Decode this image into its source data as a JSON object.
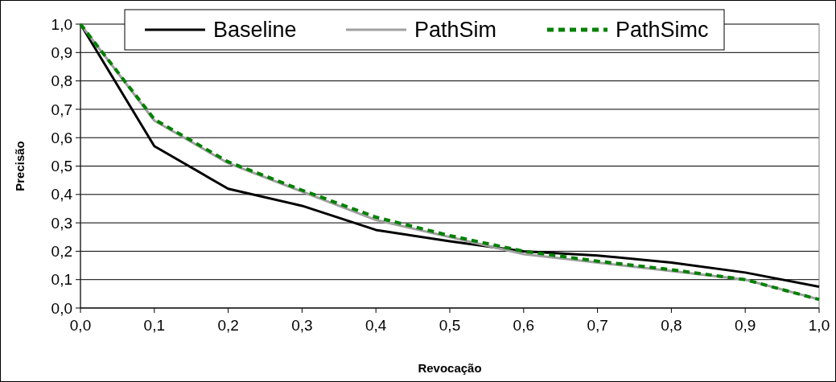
{
  "chart_data": {
    "type": "line",
    "xlabel": "Revocação",
    "ylabel": "Precisão",
    "x": [
      0,
      0.1,
      0.2,
      0.3,
      0.4,
      0.5,
      0.6,
      0.7,
      0.8,
      0.9,
      1.0
    ],
    "series": [
      {
        "name": "Baseline",
        "color": "#000000",
        "values": [
          1.0,
          0.57,
          0.42,
          0.36,
          0.275,
          0.235,
          0.2,
          0.185,
          0.16,
          0.125,
          0.075
        ]
      },
      {
        "name": "PathSim",
        "color": "#a0a0a0",
        "values": [
          1.0,
          0.66,
          0.51,
          0.41,
          0.31,
          0.25,
          0.19,
          0.16,
          0.13,
          0.1,
          0.03
        ]
      },
      {
        "name": "PathSimc",
        "color": "#008000",
        "line_style": "dashed",
        "values": [
          1.0,
          0.665,
          0.515,
          0.415,
          0.32,
          0.255,
          0.2,
          0.165,
          0.135,
          0.1,
          0.03
        ]
      }
    ],
    "xlim": [
      0,
      1
    ],
    "ylim": [
      0,
      1
    ],
    "xticks": [
      {
        "value": 0,
        "label": "0,0"
      },
      {
        "value": 0.1,
        "label": "0,1"
      },
      {
        "value": 0.2,
        "label": "0,2"
      },
      {
        "value": 0.3,
        "label": "0,3"
      },
      {
        "value": 0.4,
        "label": "0,4"
      },
      {
        "value": 0.5,
        "label": "0,5"
      },
      {
        "value": 0.6,
        "label": "0,6"
      },
      {
        "value": 0.7,
        "label": "0,7"
      },
      {
        "value": 0.8,
        "label": "0,8"
      },
      {
        "value": 0.9,
        "label": "0,9"
      },
      {
        "value": 1,
        "label": "1,0"
      }
    ],
    "yticks": [
      {
        "value": 0,
        "label": "0,0"
      },
      {
        "value": 0.1,
        "label": "0,1"
      },
      {
        "value": 0.2,
        "label": "0,2"
      },
      {
        "value": 0.3,
        "label": "0,3"
      },
      {
        "value": 0.4,
        "label": "0,4"
      },
      {
        "value": 0.5,
        "label": "0,5"
      },
      {
        "value": 0.6,
        "label": "0,6"
      },
      {
        "value": 0.7,
        "label": "0,7"
      },
      {
        "value": 0.8,
        "label": "0,8"
      },
      {
        "value": 0.9,
        "label": "0,9"
      },
      {
        "value": 1,
        "label": "1,0"
      }
    ],
    "grid": "y",
    "legend": "top",
    "marker": "none"
  }
}
